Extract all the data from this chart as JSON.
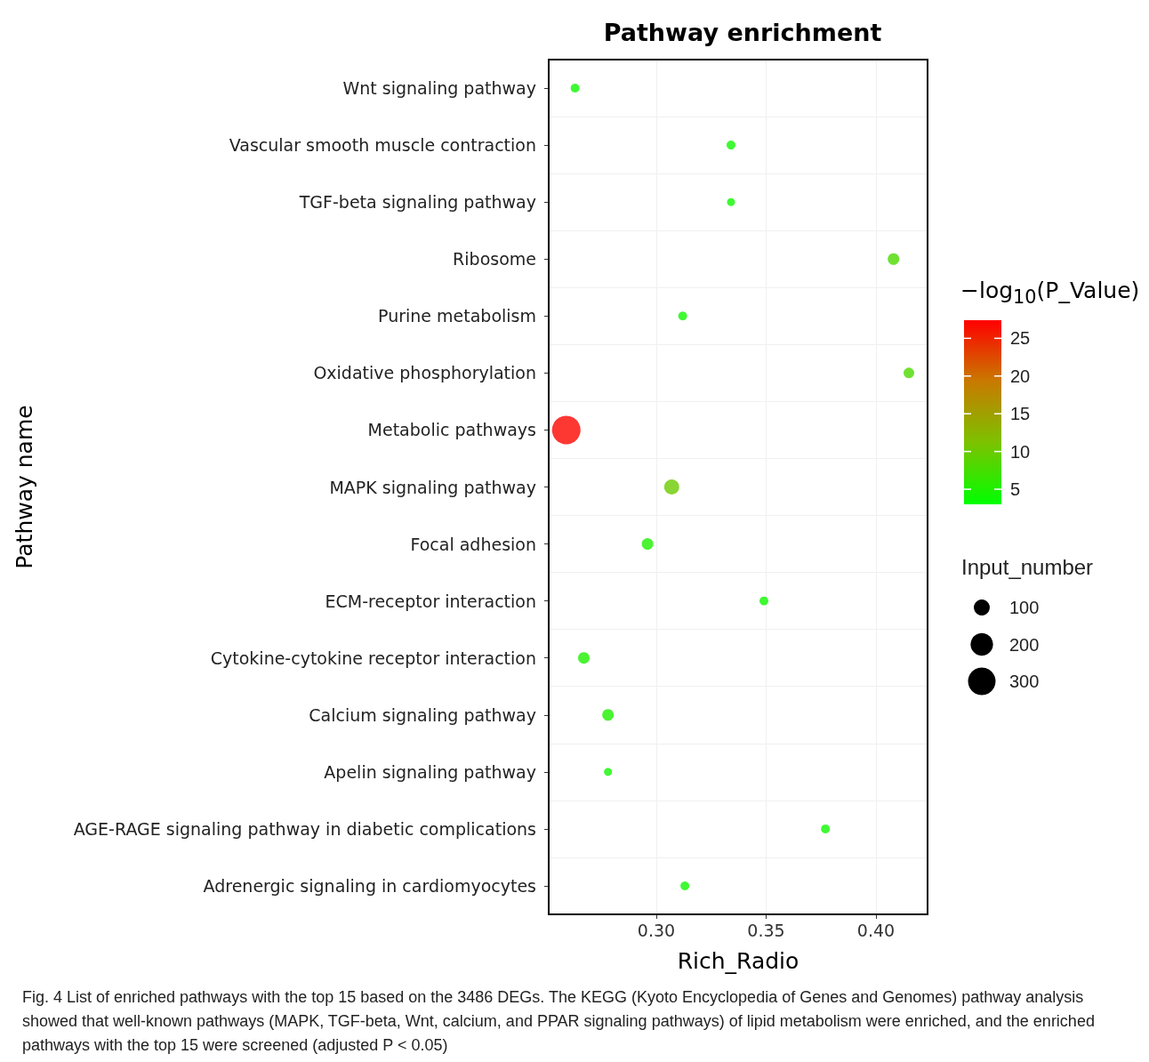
{
  "chart_data": {
    "type": "bubble",
    "orientation": "horizontal",
    "title": "Pathway enrichment",
    "xlabel": "Rich_Radio",
    "ylabel": "Pathway name",
    "clabel": "−log$_{10}$(P_Value)",
    "legend_title": "Input_number",
    "categories": [
      "Wnt signaling pathway",
      "Vascular smooth muscle contraction",
      "TGF-beta signaling pathway",
      "Ribosome",
      "Purine metabolism",
      "Oxidative phosphorylation",
      "Metabolic pathways",
      "MAPK signaling pathway",
      "Focal adhesion",
      "ECM-receptor interaction",
      "Cytokine-cytokine receptor interaction",
      "Calcium signaling pathway",
      "Apelin signaling pathway",
      "AGE-RAGE signaling pathway in diabetic complications",
      "Adrenergic signaling in cardiomyocytes"
    ],
    "values": [
      0.263,
      0.334,
      0.334,
      0.408,
      0.312,
      0.415,
      0.259,
      0.307,
      0.296,
      0.349,
      0.267,
      0.278,
      0.278,
      0.377,
      0.313
    ],
    "sizes": [
      31,
      31,
      25,
      53,
      31,
      45,
      320,
      90,
      53,
      31,
      53,
      53,
      25,
      31,
      31
    ],
    "cvalues": [
      4,
      4,
      4,
      8,
      4,
      8,
      27,
      10,
      5,
      4,
      5,
      5,
      4,
      4,
      4
    ],
    "size_legend": [
      100,
      200,
      300
    ],
    "clim": [
      3,
      27.4
    ],
    "cticks": [
      5,
      10,
      15,
      20,
      25
    ],
    "xlim": [
      0.251,
      0.4235
    ],
    "xticks": [
      {
        "value": 0.3,
        "label": "0.30"
      },
      {
        "value": 0.35,
        "label": "0.35"
      },
      {
        "value": 0.4,
        "label": "0.40"
      }
    ],
    "grid": true,
    "marker": "circle",
    "annotations": [
      "Fig. 4 List of enriched pathways with the top 15 based on the 3486 DEGs. The KEGG (Kyoto Encyclopedia of Genes and Genomes) pathway analysis showed that well-known pathways (MAPK, TGF-beta, Wnt, calcium, and PPAR signaling pathways) of lipid metabolism were enriched, and the enriched pathways with the top 15 were screened (adjusted P < 0.05)"
    ]
  }
}
